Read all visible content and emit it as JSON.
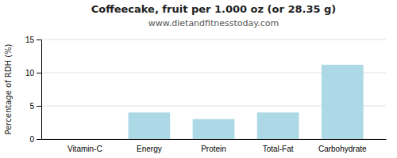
{
  "chart_data": {
    "type": "bar",
    "title": "Coffeecake, fruit per 1.000 oz (or 28.35 g)",
    "subtitle": "www.dietandfitnesstoday.com",
    "categories": [
      "Vitamin-C",
      "Energy",
      "Protein",
      "Total-Fat",
      "Carbohydrate"
    ],
    "values": [
      0,
      4.0,
      3.0,
      4.0,
      11.2
    ],
    "color": "#add8e6",
    "ylabel": "Percentage of RDH (%)",
    "ylim": [
      0,
      15
    ],
    "yticks": [
      0,
      5,
      10,
      15
    ],
    "grid": true
  }
}
